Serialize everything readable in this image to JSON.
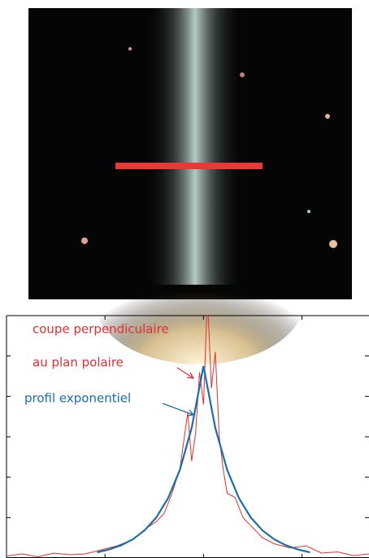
{
  "chart_data": {
    "type": "line",
    "annotations": [
      "coupe perpendiculaire",
      "au plan polaire",
      "profil exponentiel"
    ],
    "xlim": [
      -50,
      42
    ],
    "ylim": [
      0,
      6
    ],
    "xticks": [
      -25,
      0,
      25
    ],
    "yticks": [
      0,
      1,
      2,
      3,
      4,
      5,
      6
    ],
    "series": [
      {
        "color": "#e03030",
        "x": [
          -50,
          -46,
          -42,
          -38,
          -34,
          -30,
          -26,
          -22,
          -18,
          -15,
          -12,
          -10,
          -8,
          -6,
          -4,
          -3,
          -2,
          -1,
          0,
          1,
          2,
          3,
          4,
          5,
          6,
          8,
          10,
          12,
          15,
          18,
          22,
          26,
          30,
          34,
          38,
          42
        ],
        "values": [
          0.05,
          0.1,
          0.03,
          0.12,
          0.08,
          0.1,
          0.2,
          0.3,
          0.45,
          0.7,
          0.9,
          1.1,
          1.6,
          2.2,
          3.6,
          2.4,
          3.1,
          4.6,
          3.8,
          6.5,
          4.2,
          5.1,
          3.0,
          2.2,
          1.6,
          1.5,
          1.0,
          0.8,
          0.5,
          0.35,
          0.25,
          0.3,
          0.12,
          0.15,
          0.06,
          0.1
        ]
      },
      {
        "color": "#1a6fa8",
        "x": [
          -27,
          -24,
          -21,
          -18,
          -15,
          -12,
          -9,
          -6,
          -3,
          0,
          3,
          6,
          9,
          12,
          15,
          18,
          21,
          24,
          27
        ],
        "values": [
          0.14,
          0.21,
          0.31,
          0.46,
          0.68,
          1.0,
          1.48,
          2.18,
          3.22,
          4.75,
          3.22,
          2.18,
          1.48,
          1.0,
          0.68,
          0.46,
          0.31,
          0.21,
          0.14
        ]
      }
    ]
  }
}
